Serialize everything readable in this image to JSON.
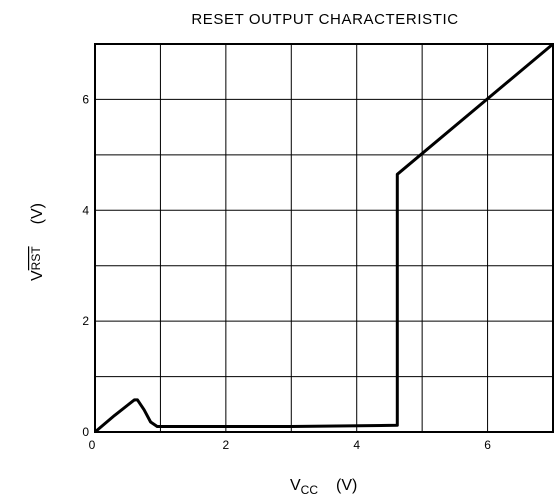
{
  "chart_data": {
    "type": "line",
    "title": "RESET OUTPUT CHARACTERISTIC",
    "xlabel": {
      "main": "V",
      "sub": "CC",
      "unit": "(V)"
    },
    "ylabel": {
      "main": "V",
      "sub": "RST",
      "sub_overline": true,
      "unit": "(V)"
    },
    "xlim": [
      0,
      7
    ],
    "ylim": [
      0,
      7
    ],
    "x_ticks": [
      0,
      2,
      4,
      6
    ],
    "y_ticks": [
      0,
      2,
      4,
      6
    ],
    "x_tick_labels": [
      "0",
      "2",
      "4",
      "6"
    ],
    "y_tick_labels": [
      "0",
      "2",
      "4",
      "6"
    ],
    "grid": true,
    "grid_step": 1,
    "line_color": "#000000",
    "series": [
      {
        "x": [
          0,
          0.3,
          0.6,
          0.65,
          0.75,
          0.85,
          0.95,
          3.0,
          4.62,
          4.62,
          7.0
        ],
        "y": [
          0,
          0.3,
          0.58,
          0.58,
          0.4,
          0.18,
          0.1,
          0.1,
          0.12,
          4.65,
          7.0
        ]
      }
    ]
  }
}
